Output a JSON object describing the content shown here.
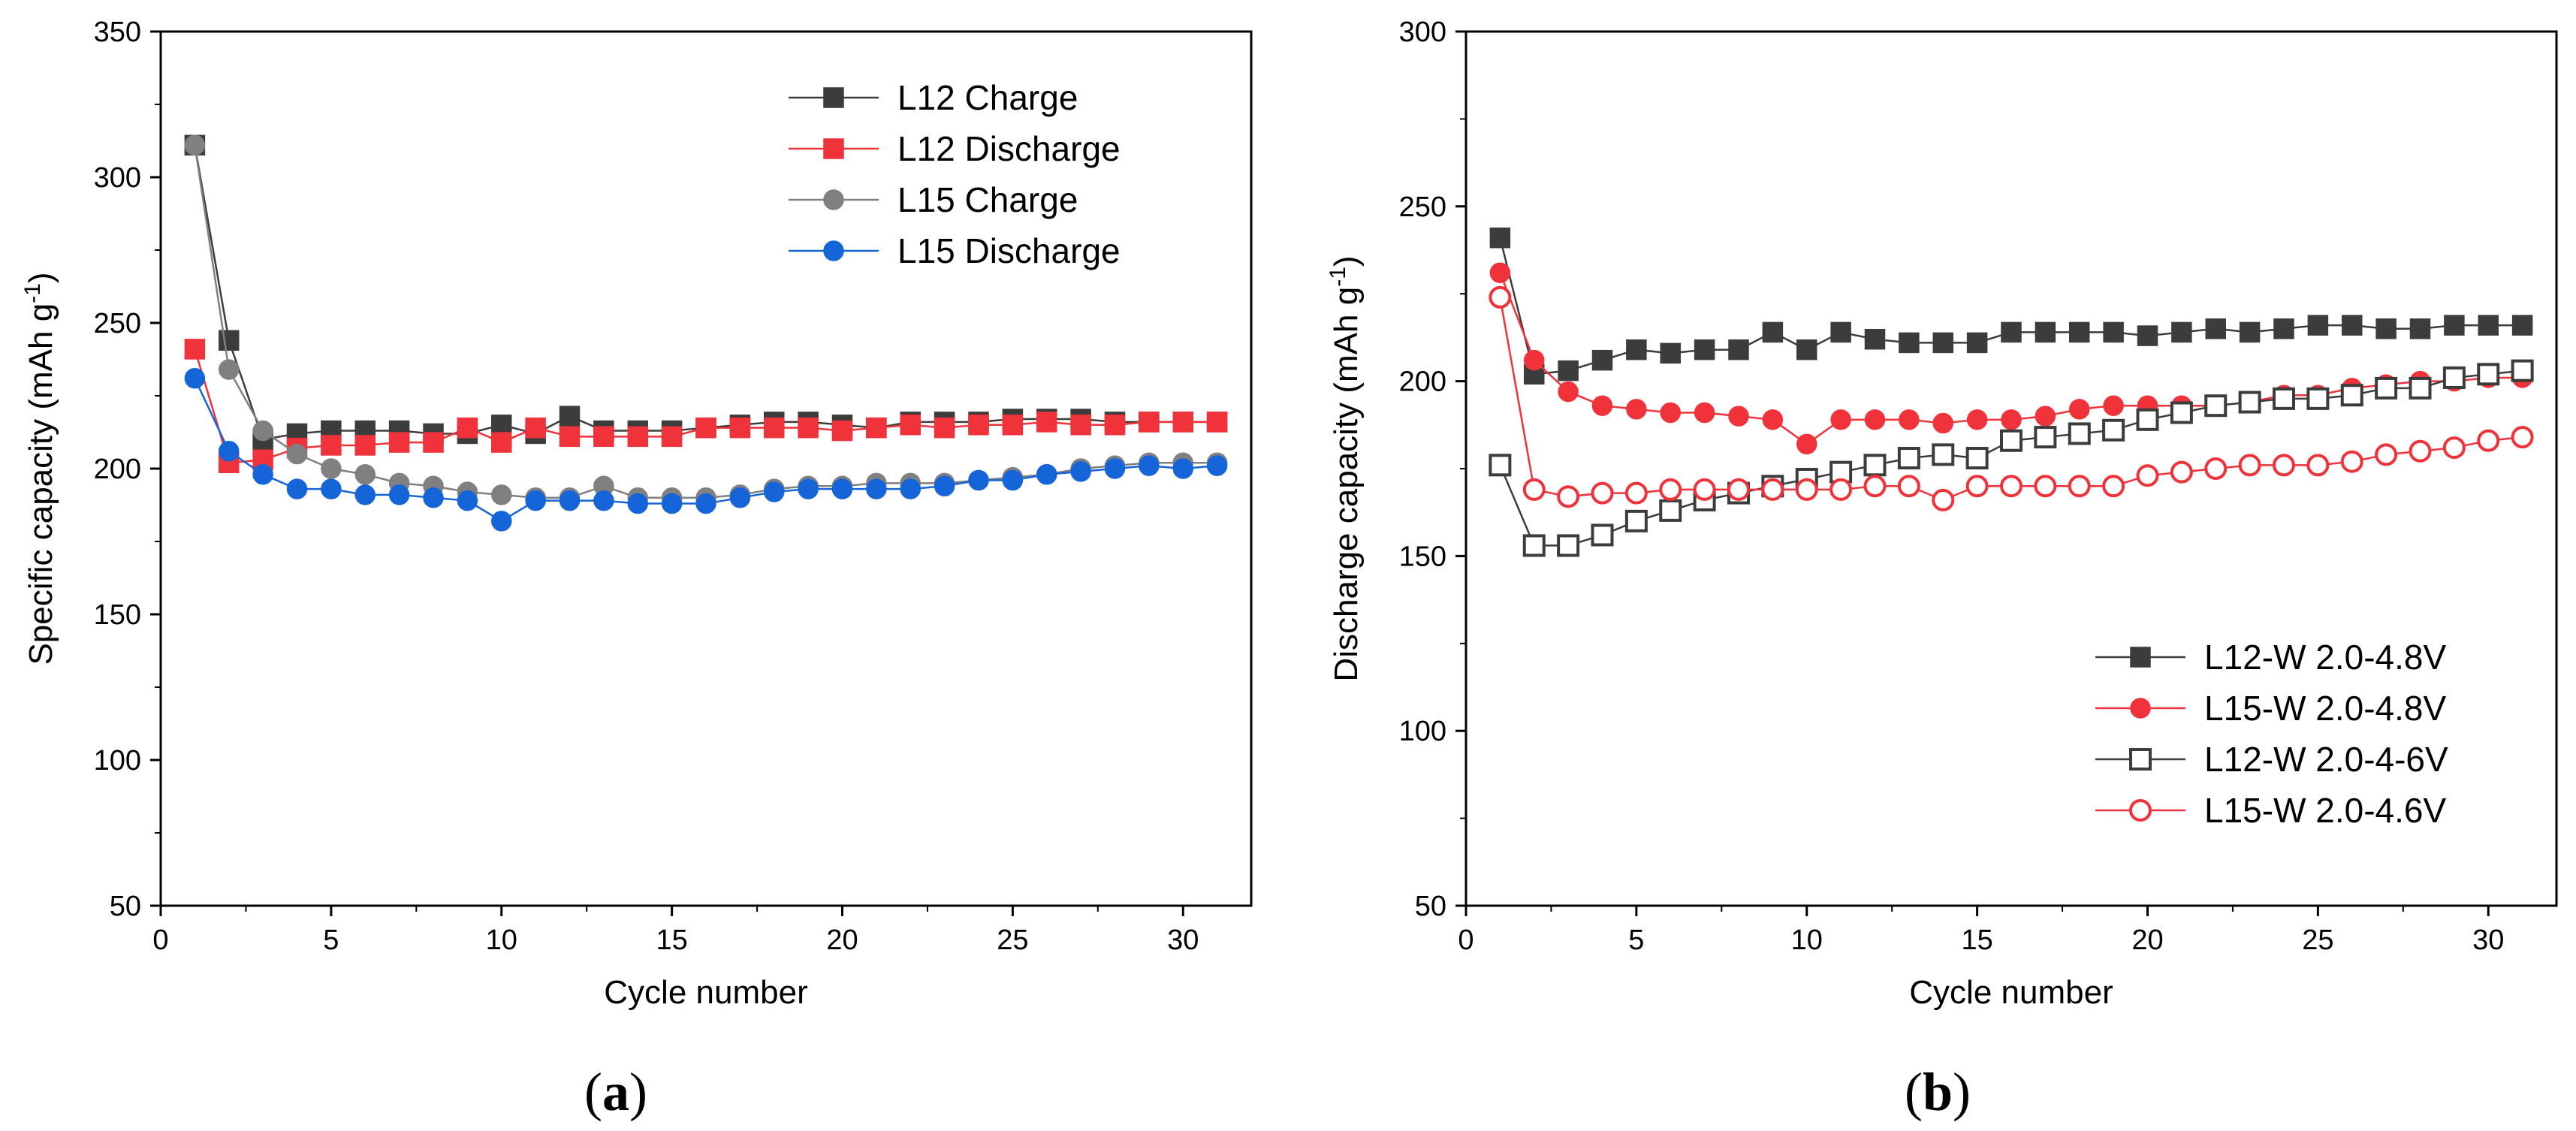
{
  "chart_data": [
    {
      "type": "line",
      "panel_label": "a",
      "xlabel": "Cycle number",
      "ylabel": "Specific capacity (mAh g",
      "ylabel_sup": "-1",
      "ylabel_close": ")",
      "xlim": [
        0,
        32
      ],
      "ylim": [
        50,
        350
      ],
      "xticks": [
        0,
        5,
        10,
        15,
        20,
        25,
        30
      ],
      "yticks": [
        50,
        100,
        150,
        200,
        250,
        300,
        350
      ],
      "legend_position": "top-right",
      "series": [
        {
          "name": "L12 Charge",
          "color": "#3c3c3c",
          "marker": "square",
          "filled": true,
          "x": [
            1,
            2,
            3,
            4,
            5,
            6,
            7,
            8,
            9,
            10,
            11,
            12,
            13,
            14,
            15,
            16,
            17,
            18,
            19,
            20,
            21,
            22,
            23,
            24,
            25,
            26,
            27,
            28,
            29,
            30,
            31
          ],
          "y": [
            311,
            244,
            210,
            212,
            213,
            213,
            213,
            212,
            212,
            215,
            212,
            218,
            213,
            213,
            213,
            214,
            215,
            216,
            216,
            215,
            214,
            216,
            216,
            216,
            217,
            217,
            217,
            216,
            216,
            216,
            216
          ]
        },
        {
          "name": "L12 Discharge",
          "color": "#f0323a",
          "marker": "square",
          "filled": true,
          "x": [
            1,
            2,
            3,
            4,
            5,
            6,
            7,
            8,
            9,
            10,
            11,
            12,
            13,
            14,
            15,
            16,
            17,
            18,
            19,
            20,
            21,
            22,
            23,
            24,
            25,
            26,
            27,
            28,
            29,
            30,
            31
          ],
          "y": [
            241,
            202,
            203,
            207,
            208,
            208,
            209,
            209,
            214,
            209,
            214,
            211,
            211,
            211,
            211,
            214,
            214,
            214,
            214,
            213,
            214,
            215,
            214,
            215,
            215,
            216,
            215,
            215,
            216,
            216,
            216
          ]
        },
        {
          "name": "L15 Charge",
          "color": "#808080",
          "marker": "circle",
          "filled": true,
          "x": [
            1,
            2,
            3,
            4,
            5,
            6,
            7,
            8,
            9,
            10,
            11,
            12,
            13,
            14,
            15,
            16,
            17,
            18,
            19,
            20,
            21,
            22,
            23,
            24,
            25,
            26,
            27,
            28,
            29,
            30,
            31
          ],
          "y": [
            311,
            234,
            213,
            205,
            200,
            198,
            195,
            194,
            192,
            191,
            190,
            190,
            194,
            190,
            190,
            190,
            191,
            193,
            194,
            194,
            195,
            195,
            195,
            196,
            197,
            198,
            200,
            201,
            202,
            202,
            202
          ]
        },
        {
          "name": "L15 Discharge",
          "color": "#1565d8",
          "marker": "circle",
          "filled": true,
          "x": [
            1,
            2,
            3,
            4,
            5,
            6,
            7,
            8,
            9,
            10,
            11,
            12,
            13,
            14,
            15,
            16,
            17,
            18,
            19,
            20,
            21,
            22,
            23,
            24,
            25,
            26,
            27,
            28,
            29,
            30,
            31
          ],
          "y": [
            231,
            206,
            198,
            193,
            193,
            191,
            191,
            190,
            189,
            182,
            189,
            189,
            189,
            188,
            188,
            188,
            190,
            192,
            193,
            193,
            193,
            193,
            194,
            196,
            196,
            198,
            199,
            200,
            201,
            200,
            201
          ]
        }
      ]
    },
    {
      "type": "line",
      "panel_label": "b",
      "xlabel": "Cycle number",
      "ylabel": "Discharge capacity (mAh g",
      "ylabel_sup": "-1",
      "ylabel_close": ")",
      "xlim": [
        0,
        32
      ],
      "ylim": [
        50,
        300
      ],
      "xticks": [
        0,
        5,
        10,
        15,
        20,
        25,
        30
      ],
      "yticks": [
        50,
        100,
        150,
        200,
        250,
        300
      ],
      "legend_position": "bottom-right",
      "series": [
        {
          "name": "L12-W 2.0-4.8V",
          "color": "#3c3c3c",
          "marker": "square",
          "filled": true,
          "x": [
            1,
            2,
            3,
            4,
            5,
            6,
            7,
            8,
            9,
            10,
            11,
            12,
            13,
            14,
            15,
            16,
            17,
            18,
            19,
            20,
            21,
            22,
            23,
            24,
            25,
            26,
            27,
            28,
            29,
            30,
            31
          ],
          "y": [
            241,
            202,
            203,
            206,
            209,
            208,
            209,
            209,
            214,
            209,
            214,
            212,
            211,
            211,
            211,
            214,
            214,
            214,
            214,
            213,
            214,
            215,
            214,
            215,
            216,
            216,
            215,
            215,
            216,
            216,
            216
          ]
        },
        {
          "name": "L15-W 2.0-4.8V",
          "color": "#f0323a",
          "marker": "circle",
          "filled": true,
          "x": [
            1,
            2,
            3,
            4,
            5,
            6,
            7,
            8,
            9,
            10,
            11,
            12,
            13,
            14,
            15,
            16,
            17,
            18,
            19,
            20,
            21,
            22,
            23,
            24,
            25,
            26,
            27,
            28,
            29,
            30,
            31
          ],
          "y": [
            231,
            206,
            197,
            193,
            192,
            191,
            191,
            190,
            189,
            182,
            189,
            189,
            189,
            188,
            189,
            189,
            190,
            192,
            193,
            193,
            193,
            193,
            194,
            196,
            196,
            198,
            199,
            200,
            200,
            201,
            201
          ]
        },
        {
          "name": "L12-W 2.0-4-6V",
          "color": "#3c3c3c",
          "marker": "square",
          "filled": false,
          "x": [
            1,
            2,
            3,
            4,
            5,
            6,
            7,
            8,
            9,
            10,
            11,
            12,
            13,
            14,
            15,
            16,
            17,
            18,
            19,
            20,
            21,
            22,
            23,
            24,
            25,
            26,
            27,
            28,
            29,
            30,
            31
          ],
          "y": [
            176,
            153,
            153,
            156,
            160,
            163,
            166,
            168,
            170,
            172,
            174,
            176,
            178,
            179,
            178,
            183,
            184,
            185,
            186,
            189,
            191,
            193,
            194,
            195,
            195,
            196,
            198,
            198,
            201,
            202,
            203
          ]
        },
        {
          "name": "L15-W 2.0-4.6V",
          "color": "#f0323a",
          "marker": "circle",
          "filled": false,
          "x": [
            1,
            2,
            3,
            4,
            5,
            6,
            7,
            8,
            9,
            10,
            11,
            12,
            13,
            14,
            15,
            16,
            17,
            18,
            19,
            20,
            21,
            22,
            23,
            24,
            25,
            26,
            27,
            28,
            29,
            30,
            31
          ],
          "y": [
            224,
            169,
            167,
            168,
            168,
            169,
            169,
            169,
            169,
            169,
            169,
            170,
            170,
            166,
            170,
            170,
            170,
            170,
            170,
            173,
            174,
            175,
            176,
            176,
            176,
            177,
            179,
            180,
            181,
            183,
            184
          ]
        }
      ]
    }
  ]
}
